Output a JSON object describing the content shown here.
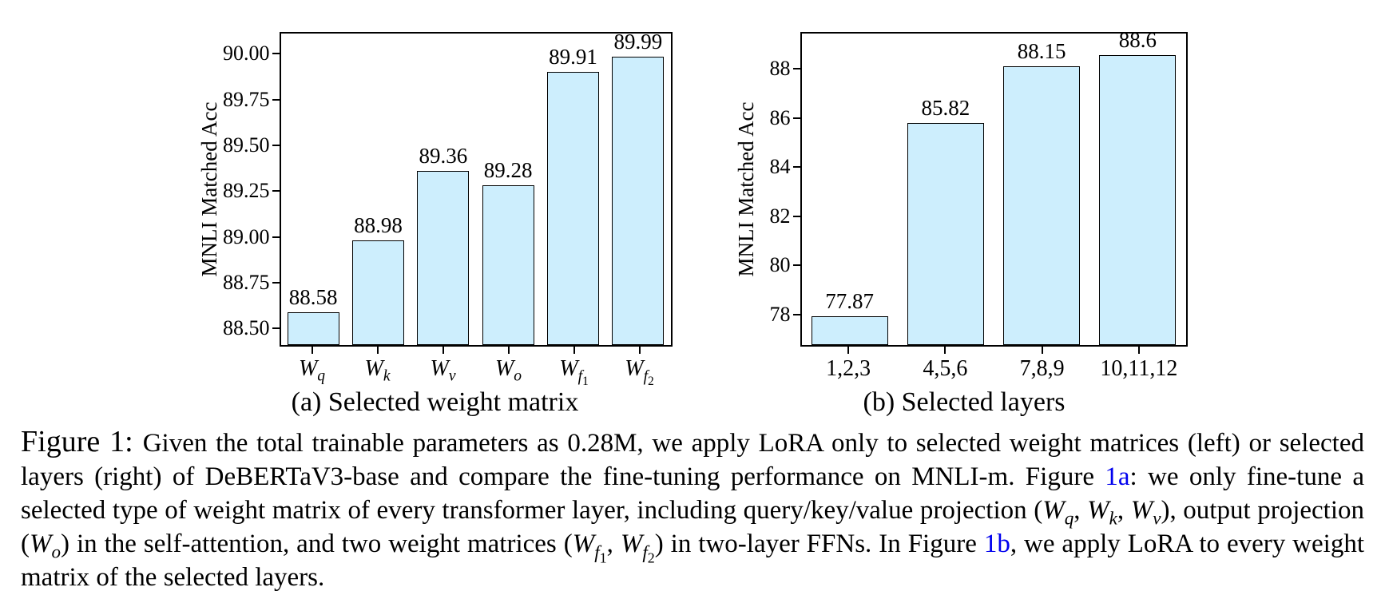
{
  "figure": {
    "link_color": "#0000ee",
    "caption_segments": [
      {
        "type": "label",
        "text": "Figure 1: "
      },
      {
        "type": "text",
        "text": "Given the total trainable parameters as 0.28M, we apply LoRA only to selected weight matrices (left) or selected layers (right) of DeBERTaV3-base and compare the fine-tuning performance on MNLI-m. Figure "
      },
      {
        "type": "link",
        "text": "1a"
      },
      {
        "type": "text",
        "text": ": we only fine-tune a selected type of weight matrix of every transformer layer, including query/key/value projection ("
      },
      {
        "type": "math",
        "base": "W",
        "sub": "q"
      },
      {
        "type": "text",
        "text": ", "
      },
      {
        "type": "math",
        "base": "W",
        "sub": "k"
      },
      {
        "type": "text",
        "text": ", "
      },
      {
        "type": "math",
        "base": "W",
        "sub": "v"
      },
      {
        "type": "text",
        "text": "), output projection ("
      },
      {
        "type": "math",
        "base": "W",
        "sub": "o"
      },
      {
        "type": "text",
        "text": ") in the self-attention, and two weight matrices ("
      },
      {
        "type": "math",
        "base": "W",
        "sub": "f",
        "subsub": "1"
      },
      {
        "type": "text",
        "text": ", "
      },
      {
        "type": "math",
        "base": "W",
        "sub": "f",
        "subsub": "2"
      },
      {
        "type": "text",
        "text": ") in two-layer FFNs. In Figure "
      },
      {
        "type": "link",
        "text": "1b"
      },
      {
        "type": "text",
        "text": ", we apply LoRA to every weight matrix of the selected layers."
      }
    ]
  },
  "chart_data": [
    {
      "type": "bar",
      "subcaption": "(a) Selected weight matrix",
      "title": "",
      "xlabel": "",
      "ylabel": "MNLI Matched Acc",
      "ylim": [
        88.4,
        90.12
      ],
      "yticks": [
        88.5,
        88.75,
        89.0,
        89.25,
        89.5,
        89.75,
        90.0
      ],
      "ytick_labels": [
        "88.50",
        "88.75",
        "89.00",
        "89.25",
        "89.50",
        "89.75",
        "90.00"
      ],
      "categories": [
        {
          "base": "W",
          "sub": "q"
        },
        {
          "base": "W",
          "sub": "k"
        },
        {
          "base": "W",
          "sub": "v"
        },
        {
          "base": "W",
          "sub": "o"
        },
        {
          "base": "W",
          "sub": "f",
          "subsub": "1"
        },
        {
          "base": "W",
          "sub": "f",
          "subsub": "2"
        }
      ],
      "values": [
        88.58,
        88.98,
        89.36,
        89.28,
        89.91,
        89.99
      ],
      "bar_labels": [
        "88.58",
        "88.98",
        "89.36",
        "89.28",
        "89.91",
        "89.99"
      ],
      "bar_fill": "#cdeefd",
      "bar_edge": "#000000",
      "grid": false,
      "legend": null
    },
    {
      "type": "bar",
      "subcaption": "(b) Selected layers",
      "title": "",
      "xlabel": "",
      "ylabel": "MNLI Matched Acc",
      "ylim": [
        76.7,
        89.5
      ],
      "yticks": [
        78,
        80,
        82,
        84,
        86,
        88
      ],
      "ytick_labels": [
        "78",
        "80",
        "82",
        "84",
        "86",
        "88"
      ],
      "categories": [
        "1,2,3",
        "4,5,6",
        "7,8,9",
        "10,11,12"
      ],
      "values": [
        77.87,
        85.82,
        88.15,
        88.6
      ],
      "bar_labels": [
        "77.87",
        "85.82",
        "88.15",
        "88.6"
      ],
      "bar_fill": "#cdeefd",
      "bar_edge": "#000000",
      "grid": false,
      "legend": null
    }
  ]
}
